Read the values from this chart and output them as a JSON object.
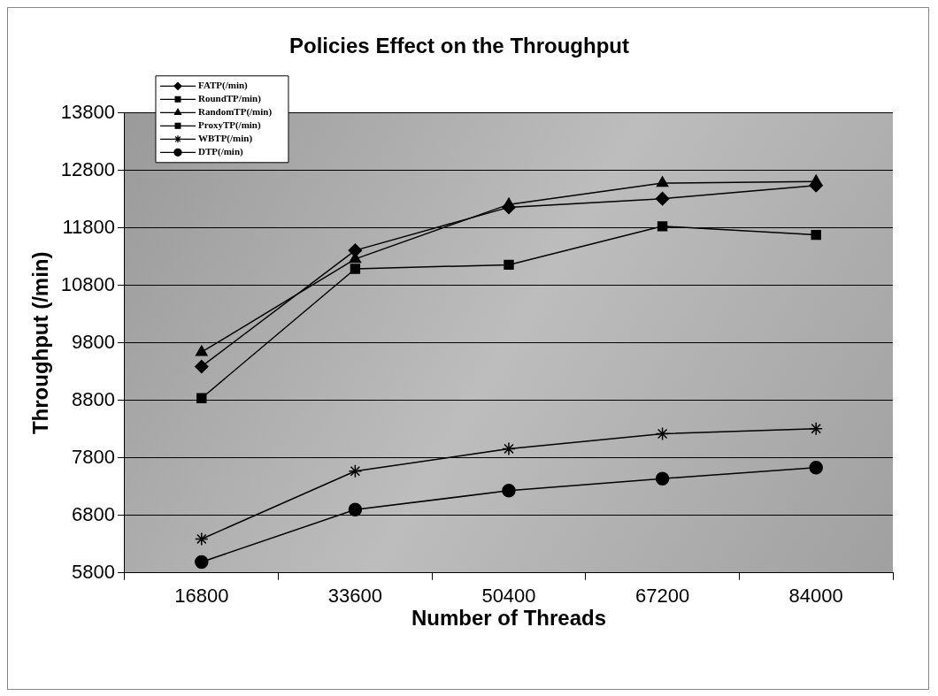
{
  "chart_data": {
    "type": "line",
    "title": "Policies Effect on the Throughput",
    "xlabel": "Number of Threads",
    "ylabel": "Throughput (/min)",
    "categories": [
      "16800",
      "33600",
      "50400",
      "67200",
      "84000"
    ],
    "ylim": [
      5800,
      13800
    ],
    "yticks": [
      5800,
      6800,
      7800,
      8800,
      9800,
      10800,
      11800,
      12800,
      13800
    ],
    "grid": "y",
    "legend": "top left",
    "series": [
      {
        "name": "FATP(/min)",
        "color": "#000000",
        "marker": "diamond",
        "values": [
          9390,
          11410,
          12160,
          12310,
          12540
        ]
      },
      {
        "name": "RoundTP/min)",
        "color": "#000000",
        "marker": "square",
        "values": [
          null,
          null,
          null,
          null,
          null
        ]
      },
      {
        "name": "RandomTP(/min)",
        "color": "#000000",
        "marker": "triangle",
        "values": [
          9640,
          11260,
          12210,
          12580,
          12610
        ]
      },
      {
        "name": "ProxyTP(/min)",
        "color": "#000000",
        "marker": "square",
        "values": [
          8840,
          11090,
          11160,
          11830,
          11680
        ]
      },
      {
        "name": "WBTP(/min)",
        "color": "#000000",
        "marker": "cross",
        "values": [
          6390,
          7570,
          7960,
          8220,
          8310
        ]
      },
      {
        "name": "DTP(/min)",
        "color": "#000000",
        "marker": "circle",
        "values": [
          5990,
          6900,
          7230,
          7440,
          7630
        ]
      }
    ]
  }
}
